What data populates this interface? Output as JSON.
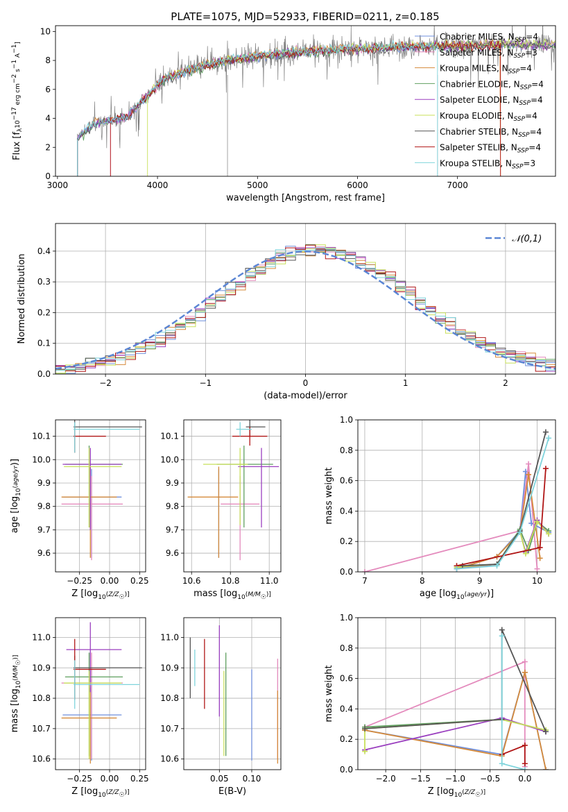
{
  "title": "PLATE=1075, MJD=52933, FIBERID=0211, z=0.185",
  "models": [
    {
      "label": "Chabrier MILES, N_SSP=4",
      "base": "Chabrier MILES, N",
      "sub": "SSP",
      "suf": "=4",
      "color": "#6f8fdc"
    },
    {
      "label": "Salpeter MILES, N_SSP=3",
      "base": "Salpeter MILES, N",
      "sub": "SSP",
      "suf": "=3",
      "color": "#e48bbd"
    },
    {
      "label": "Kroupa MILES, N_SSP=4",
      "base": "Kroupa MILES, N",
      "sub": "SSP",
      "suf": "=4",
      "color": "#d58a3a"
    },
    {
      "label": "Chabrier ELODIE, N_SSP=4",
      "base": "Chabrier ELODIE, N",
      "sub": "SSP",
      "suf": "=4",
      "color": "#5f9f5f"
    },
    {
      "label": "Salpeter ELODIE, N_SSP=4",
      "base": "Salpeter ELODIE, N",
      "sub": "SSP",
      "suf": "=4",
      "color": "#9a3fbf"
    },
    {
      "label": "Kroupa ELODIE, N_SSP=4",
      "base": "Kroupa ELODIE, N",
      "sub": "SSP",
      "suf": "=4",
      "color": "#c8e05a"
    },
    {
      "label": "Chabrier STELIB, N_SSP=4",
      "base": "Chabrier STELIB, N",
      "sub": "SSP",
      "suf": "=4",
      "color": "#555555"
    },
    {
      "label": "Salpeter STELIB, N_SSP=4",
      "base": "Salpeter STELIB, N",
      "sub": "SSP",
      "suf": "=4",
      "color": "#b01515"
    },
    {
      "label": "Kroupa STELIB, N_SSP=3",
      "base": "Kroupa STELIB, N",
      "sub": "SSP",
      "suf": "=3",
      "color": "#7fd4dc"
    }
  ],
  "chart_data": [
    {
      "id": "spectrum",
      "type": "line",
      "xlabel": "wavelength [Angstrom, rest frame]",
      "ylabel": "Flux [f_λ10^-17 erg cm^-2 s^-1 A^-1]",
      "xlim": [
        2980,
        7980
      ],
      "ylim": [
        0,
        10.4
      ],
      "xticks": [
        3000,
        4000,
        5000,
        6000,
        7000
      ],
      "yticks": [
        0,
        2,
        4,
        6,
        8,
        10
      ],
      "grid": false,
      "legend": "upper right",
      "continuum": {
        "x": [
          3200,
          3300,
          3400,
          3550,
          3700,
          3800,
          3900,
          4000,
          4100,
          4300,
          4500,
          4700,
          4900,
          5100,
          5300,
          5500,
          5700,
          5900,
          6100,
          6300,
          6500,
          6700,
          6900,
          7100,
          7300,
          7500,
          7700,
          7900
        ],
        "y": [
          2.6,
          3.3,
          3.7,
          3.9,
          4.1,
          4.9,
          5.6,
          6.3,
          6.8,
          7.3,
          7.7,
          8.0,
          8.2,
          8.4,
          8.5,
          8.6,
          8.7,
          8.8,
          8.8,
          8.9,
          8.95,
          9.0,
          9.0,
          9.0,
          9.05,
          9.1,
          9.1,
          9.1
        ]
      },
      "model_start": [
        3200,
        3530,
        3200,
        3200,
        3200,
        3900,
        3200,
        3530,
        3200
      ],
      "model_end": [
        7980,
        7980,
        7430,
        7980,
        7980,
        7980,
        7980,
        7430,
        6800
      ]
    },
    {
      "id": "residuals",
      "type": "histogram",
      "xlabel": "(data-model)/error",
      "ylabel": "Normed distribution",
      "xlim": [
        -2.5,
        2.5
      ],
      "ylim": [
        0,
        0.49
      ],
      "xticks": [
        -2,
        -1,
        0,
        1,
        2
      ],
      "yticks": [
        0.0,
        0.1,
        0.2,
        0.3,
        0.4
      ],
      "grid": true,
      "legend": "upper right",
      "reference": {
        "label": "𝒩(0,1)",
        "color": "#5b86d4"
      },
      "bin_edges_start": -2.5,
      "bin_width": 0.1
    },
    {
      "id": "age_vs_Z",
      "type": "scatter",
      "xlabel": "Z [log10(Z/Z☉)]",
      "ylabel": "age  [log10(age/yr)]",
      "xlim": [
        -0.45,
        0.3
      ],
      "ylim": [
        9.52,
        10.17
      ],
      "xticks": [
        -0.25,
        0.0,
        0.25
      ],
      "yticks": [
        9.6,
        9.7,
        9.8,
        9.9,
        10.0,
        10.1
      ],
      "grid": true,
      "points": [
        {
          "m": 0,
          "x": -0.15,
          "y": 9.84,
          "xerr": [
            0.24,
            0.25
          ],
          "yerr": [
            0.26,
            0.12
          ]
        },
        {
          "m": 1,
          "x": -0.15,
          "y": 9.81,
          "xerr": [
            0.25,
            0.26
          ],
          "yerr": [
            0.24,
            0.12
          ]
        },
        {
          "m": 2,
          "x": -0.16,
          "y": 9.84,
          "xerr": [
            0.24,
            0.22
          ],
          "yerr": [
            0.26,
            0.13
          ]
        },
        {
          "m": 3,
          "x": -0.17,
          "y": 9.98,
          "xerr": [
            0.2,
            0.28
          ],
          "yerr": [
            0.27,
            0.08
          ]
        },
        {
          "m": 4,
          "x": -0.16,
          "y": 9.98,
          "xerr": [
            0.23,
            0.26
          ],
          "yerr": [
            0.28,
            0.07
          ]
        },
        {
          "m": 5,
          "x": -0.17,
          "y": 9.97,
          "xerr": [
            0.21,
            0.27
          ],
          "yerr": [
            0.26,
            0.08
          ]
        },
        {
          "m": 6,
          "x": -0.29,
          "y": 10.14,
          "xerr": [
            0.01,
            0.56
          ],
          "yerr": [
            0.11,
            0.03
          ]
        },
        {
          "m": 7,
          "x": -0.29,
          "y": 10.1,
          "xerr": [
            0.01,
            0.26
          ],
          "yerr": [
            0.07,
            0.04
          ]
        },
        {
          "m": 8,
          "x": -0.29,
          "y": 10.13,
          "xerr": [
            0.01,
            0.54
          ],
          "yerr": [
            0.1,
            0.03
          ]
        }
      ]
    },
    {
      "id": "age_vs_mass",
      "type": "scatter",
      "xlabel": "mass [log10(M/M☉)]",
      "ylabel": "",
      "xlim": [
        10.56,
        11.06
      ],
      "ylim": [
        9.52,
        10.17
      ],
      "xticks": [
        10.6,
        10.8,
        11.0
      ],
      "yticks": [
        9.6,
        9.7,
        9.8,
        9.9,
        10.0,
        10.1
      ],
      "grid": true,
      "points": [
        {
          "m": 0,
          "x": 10.74,
          "y": 9.84,
          "xerr": [
            0.01,
            0.01
          ],
          "yerr": [
            0.26,
            0.12
          ]
        },
        {
          "m": 1,
          "x": 10.85,
          "y": 9.81,
          "xerr": [
            0.1,
            0.1
          ],
          "yerr": [
            0.24,
            0.12
          ]
        },
        {
          "m": 2,
          "x": 10.74,
          "y": 9.84,
          "xerr": [
            0.16,
            0.1
          ],
          "yerr": [
            0.26,
            0.13
          ]
        },
        {
          "m": 3,
          "x": 10.87,
          "y": 9.98,
          "xerr": [
            0.14,
            0.15
          ],
          "yerr": [
            0.27,
            0.08
          ]
        },
        {
          "m": 4,
          "x": 10.96,
          "y": 9.97,
          "xerr": [
            0.12,
            0.09
          ],
          "yerr": [
            0.26,
            0.08
          ]
        },
        {
          "m": 5,
          "x": 10.85,
          "y": 9.98,
          "xerr": [
            0.19,
            0.04
          ],
          "yerr": [
            0.26,
            0.07
          ]
        },
        {
          "m": 6,
          "x": 10.9,
          "y": 10.14,
          "xerr": [
            0.02,
            0.08
          ],
          "yerr": [
            0.04,
            0.03
          ]
        },
        {
          "m": 7,
          "x": 10.9,
          "y": 10.1,
          "xerr": [
            0.09,
            0.09
          ],
          "yerr": [
            0.04,
            0.04
          ]
        },
        {
          "m": 8,
          "x": 10.85,
          "y": 10.13,
          "xerr": [
            0.02,
            0.06
          ],
          "yerr": [
            0.03,
            0.03
          ]
        }
      ]
    },
    {
      "id": "weight_vs_age",
      "type": "line",
      "xlabel": "age  [log10(age/yr)]",
      "ylabel": "mass weight",
      "xlim": [
        6.88,
        10.32
      ],
      "ylim": [
        0,
        1
      ],
      "xticks": [
        7,
        8,
        9,
        10
      ],
      "yticks": [
        0.0,
        0.2,
        0.4,
        0.6,
        0.8,
        1.0
      ],
      "grid": true,
      "series": [
        {
          "m": 0,
          "x": [
            8.6,
            9.3,
            9.7,
            9.8,
            9.9,
            10.2
          ],
          "y": [
            0.02,
            0.1,
            0.27,
            0.66,
            0.32,
            0.26
          ]
        },
        {
          "m": 1,
          "x": [
            7.0,
            9.7,
            9.85,
            10.0
          ],
          "y": [
            0.0,
            0.27,
            0.71,
            0.02
          ]
        },
        {
          "m": 2,
          "x": [
            8.6,
            9.3,
            9.7,
            9.85,
            10.05
          ],
          "y": [
            0.02,
            0.1,
            0.26,
            0.64,
            0.09
          ]
        },
        {
          "m": 3,
          "x": [
            8.6,
            9.3,
            9.7,
            9.85,
            10.0,
            10.2
          ],
          "y": [
            0.03,
            0.05,
            0.28,
            0.14,
            0.33,
            0.27
          ]
        },
        {
          "m": 4,
          "x": [
            8.6,
            9.3,
            9.7,
            9.8,
            10.0,
            10.2
          ],
          "y": [
            0.02,
            0.05,
            0.27,
            0.13,
            0.34,
            0.25
          ]
        },
        {
          "m": 5,
          "x": [
            8.6,
            9.3,
            9.7,
            9.8,
            10.0,
            10.2
          ],
          "y": [
            0.03,
            0.05,
            0.27,
            0.12,
            0.33,
            0.25
          ]
        },
        {
          "m": 6,
          "x": [
            8.7,
            9.3,
            9.7,
            10.15
          ],
          "y": [
            0.04,
            0.05,
            0.27,
            0.92
          ]
        },
        {
          "m": 7,
          "x": [
            8.6,
            10.05,
            10.15
          ],
          "y": [
            0.04,
            0.16,
            0.68
          ]
        },
        {
          "m": 8,
          "x": [
            8.6,
            9.3,
            9.7,
            10.2
          ],
          "y": [
            0.02,
            0.04,
            0.26,
            0.88
          ]
        }
      ]
    },
    {
      "id": "mass_vs_Z",
      "type": "scatter",
      "xlabel": "Z [log10(Z/Z☉)]",
      "ylabel": "mass [log10(M/M☉)]",
      "xlim": [
        -0.45,
        0.3
      ],
      "ylim": [
        10.565,
        11.065
      ],
      "xticks": [
        -0.25,
        0.0,
        0.25
      ],
      "yticks": [
        10.6,
        10.7,
        10.8,
        10.9,
        11.0
      ],
      "grid": true,
      "points": [
        {
          "m": 0,
          "x": -0.15,
          "y": 10.745,
          "xerr": [
            0.24,
            0.25
          ],
          "yerr": [
            0.15,
            0.15
          ]
        },
        {
          "m": 1,
          "x": -0.15,
          "y": 10.85,
          "xerr": [
            0.25,
            0.26
          ],
          "yerr": [
            0.25,
            0.1
          ]
        },
        {
          "m": 2,
          "x": -0.16,
          "y": 10.735,
          "xerr": [
            0.24,
            0.22
          ],
          "yerr": [
            0.15,
            0.1
          ]
        },
        {
          "m": 3,
          "x": -0.17,
          "y": 10.87,
          "xerr": [
            0.2,
            0.28
          ],
          "yerr": [
            0.26,
            0.08
          ]
        },
        {
          "m": 4,
          "x": -0.16,
          "y": 10.96,
          "xerr": [
            0.2,
            0.26
          ],
          "yerr": [
            0.14,
            0.09
          ]
        },
        {
          "m": 5,
          "x": -0.17,
          "y": 10.85,
          "xerr": [
            0.21,
            0.27
          ],
          "yerr": [
            0.25,
            0.04
          ]
        },
        {
          "m": 6,
          "x": -0.29,
          "y": 10.9,
          "xerr": [
            0.01,
            0.56
          ],
          "yerr": [
            0.1,
            0.04
          ]
        },
        {
          "m": 7,
          "x": -0.29,
          "y": 10.895,
          "xerr": [
            0.01,
            0.26
          ],
          "yerr": [
            0.1,
            0.1
          ]
        },
        {
          "m": 8,
          "x": -0.29,
          "y": 10.845,
          "xerr": [
            0.01,
            0.54
          ],
          "yerr": [
            0.08,
            0.08
          ]
        }
      ]
    },
    {
      "id": "mass_vs_EBV",
      "type": "errorbar",
      "xlabel": "E(B-V)",
      "ylabel": "",
      "xlim": [
        -0.005,
        0.145
      ],
      "ylim": [
        10.565,
        11.065
      ],
      "xticks": [
        0.05,
        0.1
      ],
      "yticks": [
        10.6,
        10.7,
        10.8,
        10.9,
        11.0
      ],
      "grid": true,
      "points": [
        {
          "m": 0,
          "x": 0.1,
          "y": 10.745,
          "yerr": [
            0.15,
            0.15
          ]
        },
        {
          "m": 1,
          "x": 0.14,
          "y": 10.85,
          "yerr": [
            0.25,
            0.08
          ]
        },
        {
          "m": 2,
          "x": 0.14,
          "y": 10.735,
          "yerr": [
            0.15,
            0.09
          ]
        },
        {
          "m": 3,
          "x": 0.06,
          "y": 10.87,
          "yerr": [
            0.26,
            0.08
          ]
        },
        {
          "m": 4,
          "x": 0.05,
          "y": 10.96,
          "yerr": [
            0.22,
            0.08
          ]
        },
        {
          "m": 5,
          "x": 0.057,
          "y": 10.85,
          "yerr": [
            0.24,
            0.04
          ]
        },
        {
          "m": 6,
          "x": 0.005,
          "y": 10.9,
          "yerr": [
            0.1,
            0.1
          ]
        },
        {
          "m": 7,
          "x": 0.027,
          "y": 10.895,
          "yerr": [
            0.13,
            0.1
          ]
        },
        {
          "m": 8,
          "x": 0.012,
          "y": 10.9,
          "yerr": [
            0.06,
            0.06
          ]
        }
      ]
    },
    {
      "id": "weight_vs_Z",
      "type": "line",
      "xlabel": "Z [log10(Z/Z☉)]",
      "ylabel": "mass weight",
      "xlim": [
        -2.4,
        0.44
      ],
      "ylim": [
        0,
        1
      ],
      "xticks": [
        -2.0,
        -1.5,
        -1.0,
        -0.5,
        0.0
      ],
      "yticks": [
        0.0,
        0.2,
        0.4,
        0.6,
        0.8,
        1.0
      ],
      "grid": true,
      "series": [
        {
          "m": 0,
          "x": [
            -2.3,
            -0.33,
            0.0,
            0.3
          ],
          "y": [
            0.26,
            0.1,
            0.64,
            0.0
          ]
        },
        {
          "m": 1,
          "x": [
            -2.3,
            0.0,
            0.0
          ],
          "y": [
            0.28,
            0.71,
            0.02
          ]
        },
        {
          "m": 2,
          "x": [
            -2.3,
            -0.33,
            0.0,
            0.3
          ],
          "y": [
            0.26,
            0.09,
            0.64,
            0.0
          ]
        },
        {
          "m": 3,
          "x": [
            -2.3,
            -0.33,
            0.3
          ],
          "y": [
            0.28,
            0.33,
            0.26
          ]
        },
        {
          "m": 4,
          "x": [
            -2.3,
            -0.33,
            0.3
          ],
          "y": [
            0.13,
            0.34,
            0.25
          ]
        },
        {
          "m": 5,
          "x": [
            -2.3,
            -2.3,
            -0.33,
            0.3
          ],
          "y": [
            0.12,
            0.27,
            0.33,
            0.26
          ]
        },
        {
          "m": 6,
          "x": [
            -2.3,
            -0.33,
            -0.33,
            0.3
          ],
          "y": [
            0.27,
            0.33,
            0.92,
            0.25
          ]
        },
        {
          "m": 7,
          "x": [
            -0.33,
            0.0,
            0.0
          ],
          "y": [
            0.1,
            0.16,
            0.04
          ]
        },
        {
          "m": 8,
          "x": [
            -0.33,
            -0.33,
            0.0
          ],
          "y": [
            0.88,
            0.04,
            0.0
          ]
        }
      ]
    }
  ]
}
